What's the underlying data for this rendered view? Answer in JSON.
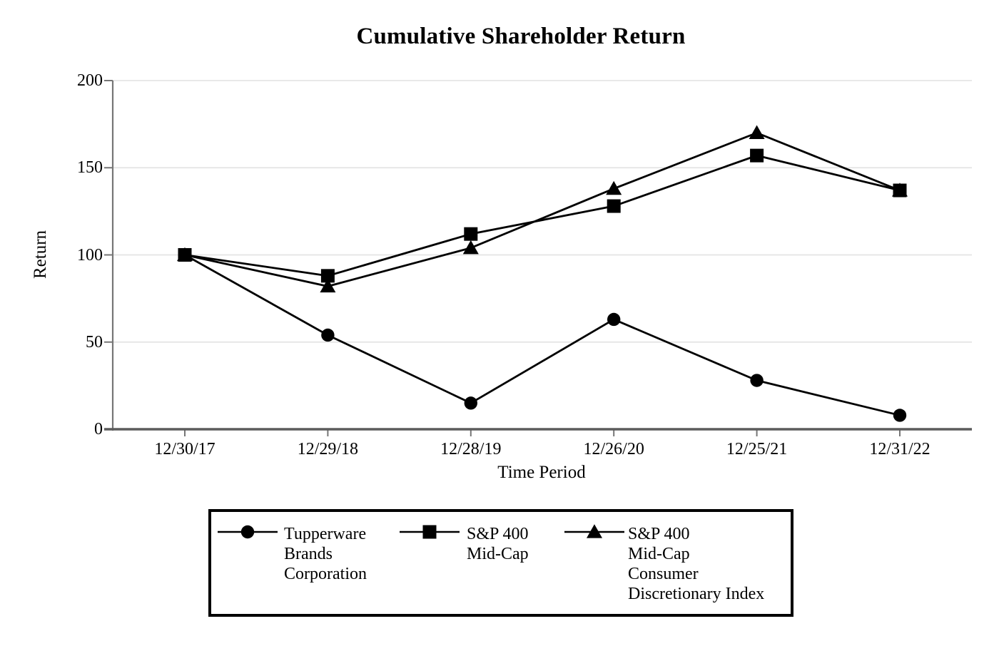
{
  "chart_data": {
    "type": "line",
    "title": "Cumulative Shareholder Return",
    "xlabel": "Time Period",
    "ylabel": "Return",
    "categories": [
      "12/30/17",
      "12/29/18",
      "12/28/19",
      "12/26/20",
      "12/25/21",
      "12/31/22"
    ],
    "yticks": [
      0,
      50,
      100,
      150,
      200
    ],
    "ylim": [
      0,
      200
    ],
    "grid": "horizontal",
    "legend_position": "bottom",
    "series": [
      {
        "name": "Tupperware Brands Corporation",
        "marker": "circle",
        "color": "#000000",
        "values": [
          100,
          54,
          15,
          63,
          28,
          8
        ]
      },
      {
        "name": "S&P 400 Mid-Cap",
        "marker": "square",
        "color": "#000000",
        "values": [
          100,
          88,
          112,
          128,
          157,
          137
        ]
      },
      {
        "name": "S&P 400 Mid-Cap Consumer Discretionary Index",
        "marker": "triangle",
        "color": "#000000",
        "values": [
          100,
          82,
          104,
          138,
          170,
          137
        ]
      }
    ]
  },
  "legend": {
    "entries": [
      {
        "label": "Tupperware\nBrands\nCorporation",
        "marker": "circle"
      },
      {
        "label": "S&P 400\nMid-Cap",
        "marker": "square"
      },
      {
        "label": "S&P 400\nMid-Cap\nConsumer\nDiscretionary Index",
        "marker": "triangle"
      }
    ]
  },
  "colors": {
    "background": "#ffffff",
    "line": "#000000",
    "marker": "#000000",
    "axis": "#767676",
    "bottom_axis": "#5c5c5c",
    "gridline": "#e4e4e4",
    "text": "#000000",
    "legend_border": "#000000"
  }
}
